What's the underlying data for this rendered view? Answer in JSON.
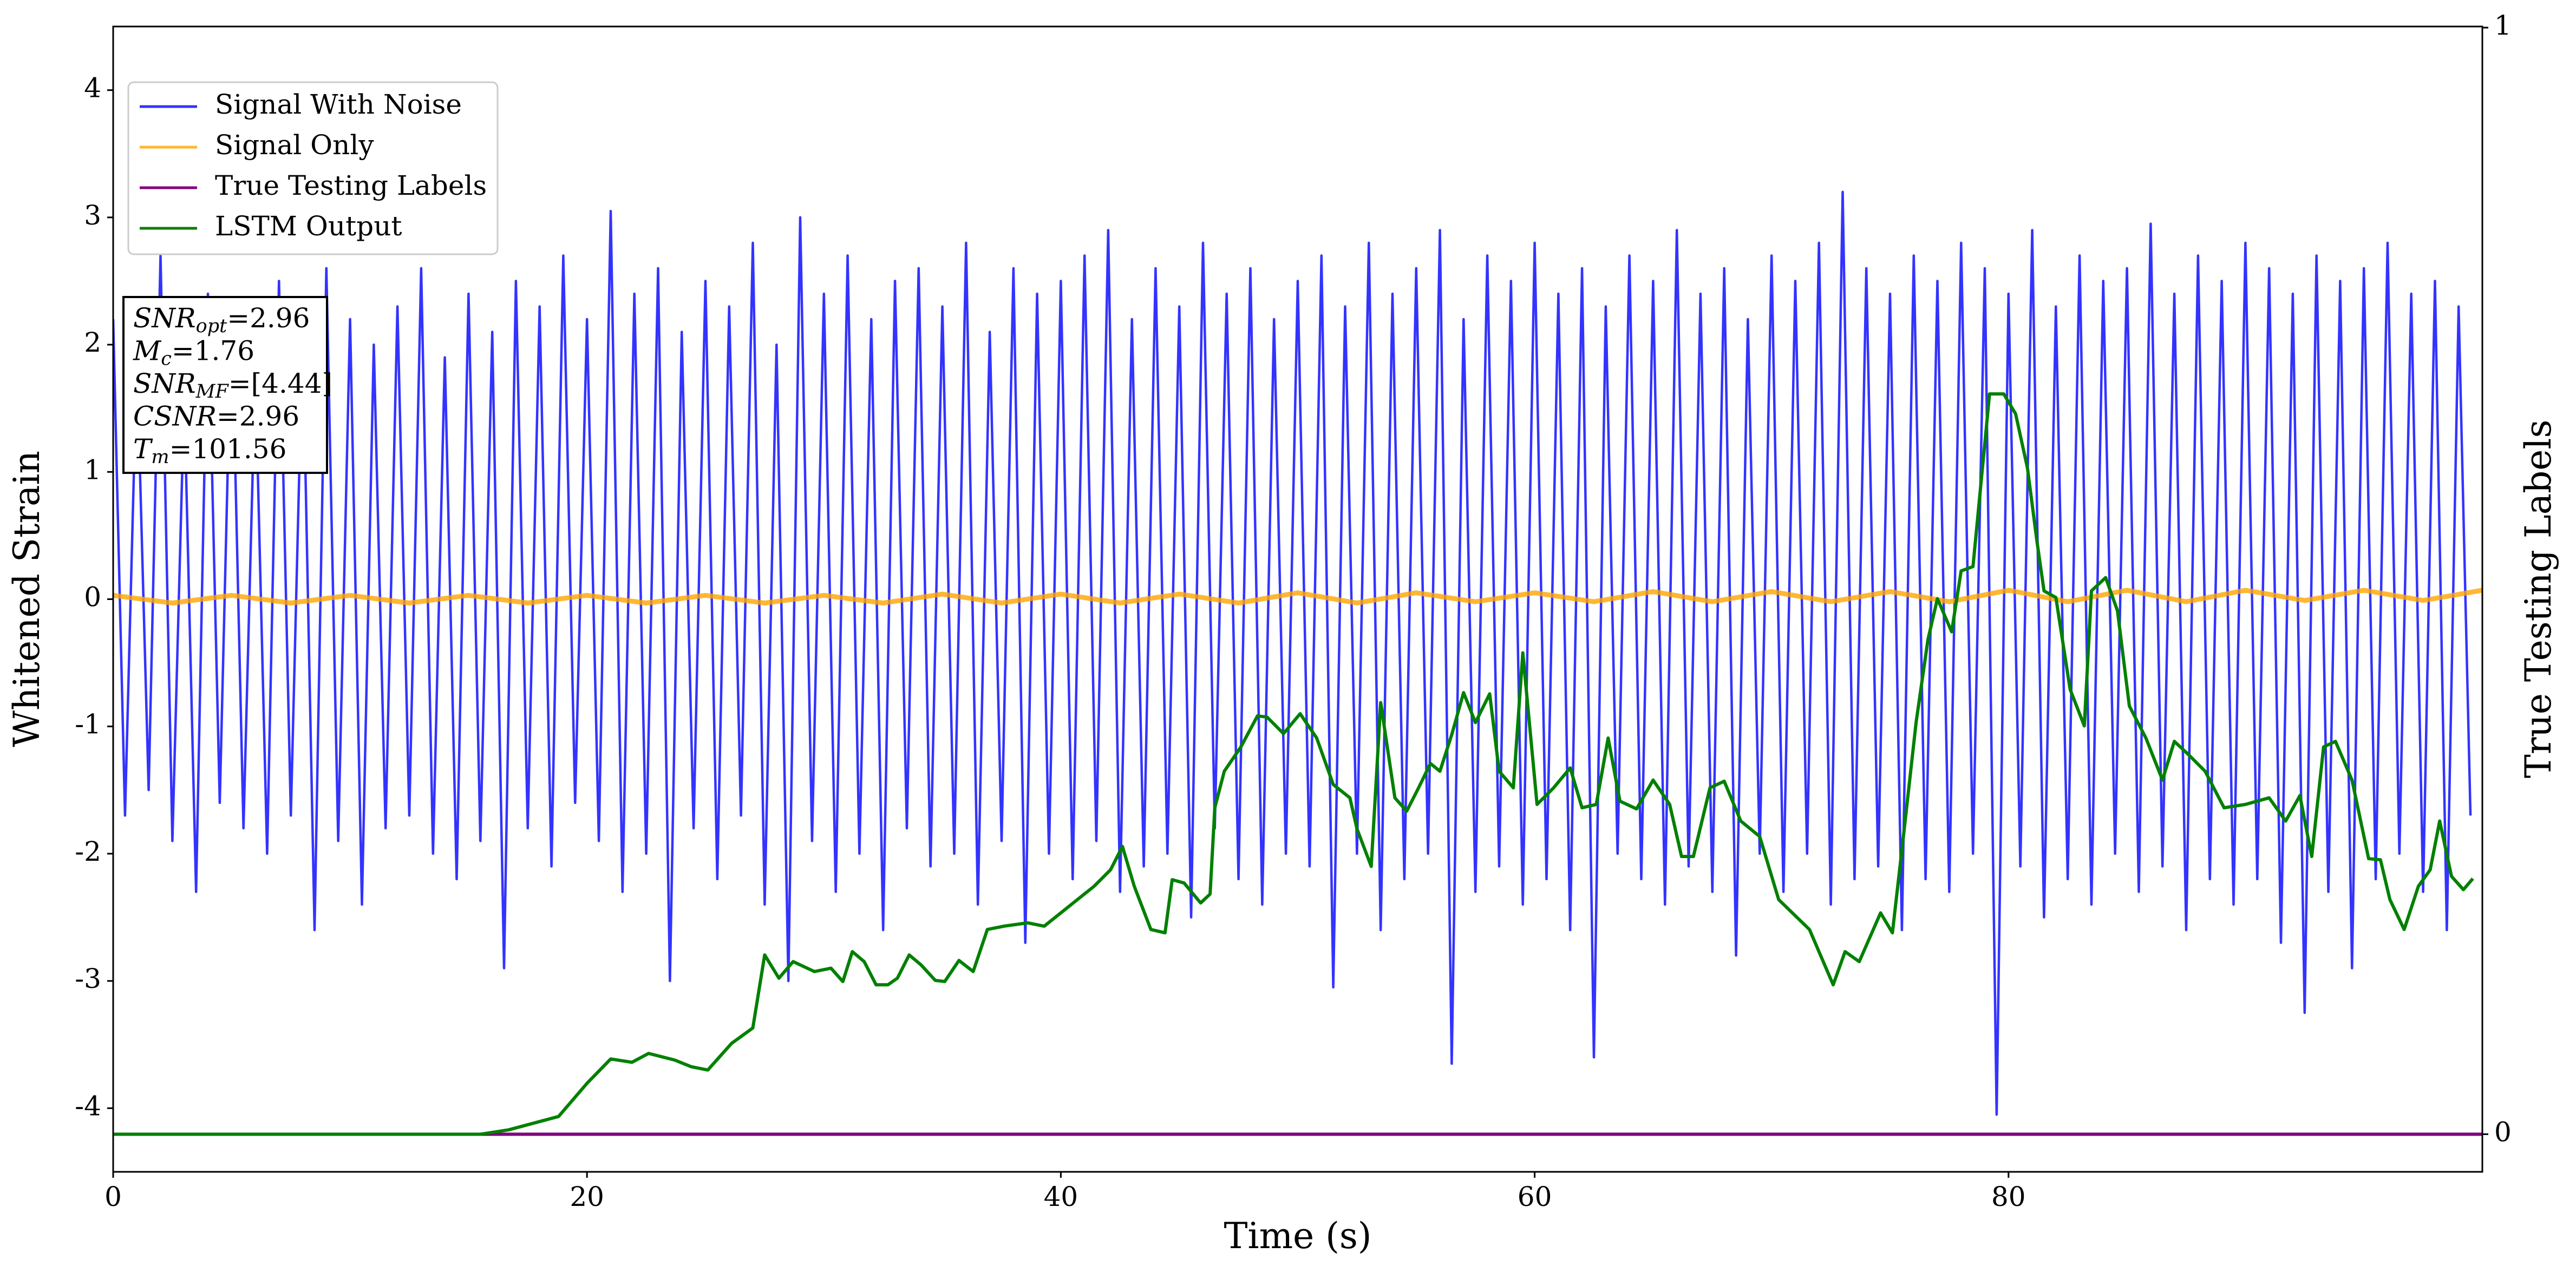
{
  "chart_data": {
    "type": "line",
    "xlabel": "Time (s)",
    "ylabel": "Whitened Strain",
    "y2label": "True Testing Labels",
    "xlim": [
      0,
      100
    ],
    "ylim": [
      -4.5,
      4.5
    ],
    "y2lim": [
      -0.034,
      1.001
    ],
    "xticks": [
      0,
      20,
      40,
      60,
      80
    ],
    "yticks": [
      -4,
      -3,
      -2,
      -1,
      0,
      1,
      2,
      3,
      4
    ],
    "y2ticks": [
      0,
      1
    ],
    "legend": "upper left",
    "annotation": [
      {
        "symbol": "SNR",
        "subscript": "opt",
        "text": "=2.96"
      },
      {
        "symbol": "M",
        "subscript": "c",
        "text": "=1.76"
      },
      {
        "symbol": "SNR",
        "subscript": "MF",
        "text": "=[4.44]"
      },
      {
        "symbol": "CSNR",
        "text": "=2.96"
      },
      {
        "symbol": "T",
        "subscript": "m",
        "text": "=101.56"
      }
    ],
    "series": [
      {
        "name": "Signal With Noise",
        "color": "#0000ff",
        "opacity": 0.8,
        "axis": "y",
        "x": [
          0,
          0.5,
          1,
          1.5,
          2,
          2.5,
          3,
          3.5,
          4,
          4.5,
          5,
          5.5,
          6,
          6.5,
          7,
          7.5,
          8,
          8.5,
          9,
          9.5,
          10,
          10.5,
          11,
          11.5,
          12,
          12.5,
          13,
          13.5,
          14,
          14.5,
          15,
          15.5,
          16,
          16.5,
          17,
          17.5,
          18,
          18.5,
          19,
          19.5,
          20,
          20.5,
          21,
          21.5,
          22,
          22.5,
          23,
          23.5,
          24,
          24.5,
          25,
          25.5,
          26,
          26.5,
          27,
          27.5,
          28,
          28.5,
          29,
          29.5,
          30,
          30.5,
          31,
          31.5,
          32,
          32.5,
          33,
          33.5,
          34,
          34.5,
          35,
          35.5,
          36,
          36.5,
          37,
          37.5,
          38,
          38.5,
          39,
          39.5,
          40,
          40.5,
          41,
          41.5,
          42,
          42.5,
          43,
          43.5,
          44,
          44.5,
          45,
          45.5,
          46,
          46.5,
          47,
          47.5,
          48,
          48.5,
          49,
          49.5,
          50,
          50.5,
          51,
          51.5,
          52,
          52.5,
          53,
          53.5,
          54,
          54.5,
          55,
          55.5,
          56,
          56.5,
          57,
          57.5,
          58,
          58.5,
          59,
          59.5,
          60,
          60.5,
          61,
          61.5,
          62,
          62.5,
          63,
          63.5,
          64,
          64.5,
          65,
          65.5,
          66,
          66.5,
          67,
          67.5,
          68,
          68.5,
          69,
          69.5,
          70,
          70.5,
          71,
          71.5,
          72,
          72.5,
          73,
          73.5,
          74,
          74.5,
          75,
          75.5,
          76,
          76.5,
          77,
          77.5,
          78,
          78.5,
          79,
          79.5,
          80,
          80.5,
          81,
          81.5,
          82,
          82.5,
          83,
          83.5,
          84,
          84.5,
          85,
          85.5,
          86,
          86.5,
          87,
          87.5,
          88,
          88.5,
          89,
          89.5,
          90,
          90.5,
          91,
          91.5,
          92,
          92.5,
          93,
          93.5,
          94,
          94.5,
          95,
          95.5,
          96,
          96.5,
          97,
          97.5,
          98,
          98.5,
          99,
          99.5
        ],
        "values": [
          2.2,
          -1.7,
          1.9,
          -1.5,
          2.7,
          -1.9,
          1.6,
          -2.3,
          2.4,
          -1.6,
          2.3,
          -1.8,
          1.8,
          -2.0,
          2.5,
          -1.7,
          2.1,
          -2.6,
          2.6,
          -1.9,
          2.2,
          -2.4,
          2.0,
          -1.8,
          2.3,
          -1.7,
          2.6,
          -2.0,
          1.9,
          -2.2,
          2.4,
          -1.9,
          2.1,
          -2.9,
          2.5,
          -1.8,
          2.3,
          -2.1,
          2.7,
          -1.6,
          2.2,
          -1.9,
          3.05,
          -2.3,
          2.4,
          -2.0,
          2.6,
          -3.0,
          2.1,
          -1.8,
          2.5,
          -2.2,
          2.3,
          -1.7,
          2.8,
          -2.4,
          2.0,
          -3.0,
          3.0,
          -1.9,
          2.4,
          -2.3,
          2.7,
          -2.0,
          2.2,
          -2.6,
          2.5,
          -1.8,
          2.6,
          -2.1,
          2.3,
          -2.0,
          2.8,
          -2.4,
          2.1,
          -1.9,
          2.6,
          -2.7,
          2.4,
          -2.0,
          2.5,
          -2.2,
          2.7,
          -1.9,
          2.9,
          -2.3,
          2.2,
          -2.1,
          2.6,
          -2.0,
          2.3,
          -2.5,
          2.8,
          -1.8,
          2.4,
          -2.2,
          2.6,
          -2.4,
          2.2,
          -2.0,
          2.5,
          -2.1,
          2.7,
          -3.05,
          2.3,
          -2.0,
          2.8,
          -2.6,
          2.4,
          -2.2,
          2.6,
          -2.0,
          2.9,
          -3.65,
          2.2,
          -2.3,
          2.7,
          -2.1,
          2.5,
          -2.4,
          2.8,
          -2.2,
          2.4,
          -2.6,
          2.6,
          -3.6,
          2.3,
          -2.0,
          2.7,
          -2.2,
          2.5,
          -2.4,
          2.9,
          -2.1,
          2.4,
          -2.3,
          2.6,
          -2.8,
          2.2,
          -2.0,
          2.7,
          -2.3,
          2.5,
          -2.0,
          2.8,
          -2.4,
          3.2,
          -2.2,
          2.6,
          -2.1,
          2.4,
          -2.6,
          2.7,
          -2.2,
          2.5,
          -2.3,
          2.8,
          -2.0,
          2.6,
          -4.05,
          2.4,
          -2.1,
          2.9,
          -2.5,
          2.3,
          -2.2,
          2.7,
          -2.4,
          2.5,
          -2.0,
          2.6,
          -2.3,
          2.95,
          -2.1,
          2.4,
          -2.6,
          2.7,
          -2.2,
          2.5,
          -2.4,
          2.8,
          -2.2,
          2.6,
          -2.7,
          2.4,
          -3.25,
          2.7,
          -2.3,
          2.5,
          -2.9,
          2.6,
          -2.2,
          2.8,
          -2.0,
          2.4,
          -2.3,
          2.5,
          -2.6,
          2.3,
          -1.7
        ]
      },
      {
        "name": "Signal Only",
        "color": "#ffa500",
        "opacity": 0.8,
        "axis": "y",
        "x": [
          0,
          2.5,
          5,
          7.5,
          10,
          12.5,
          15,
          17.5,
          20,
          22.5,
          25,
          27.5,
          30,
          32.5,
          35,
          37.5,
          40,
          42.5,
          45,
          47.5,
          50,
          52.5,
          55,
          57.5,
          60,
          62.5,
          65,
          67.5,
          70,
          72.5,
          75,
          77.5,
          80,
          82.5,
          85,
          87.5,
          90,
          92.5,
          95,
          97.5,
          100
        ],
        "values": [
          0.03,
          -0.03,
          0.03,
          -0.03,
          0.03,
          -0.03,
          0.03,
          -0.03,
          0.03,
          -0.03,
          0.03,
          -0.03,
          0.03,
          -0.03,
          0.04,
          -0.03,
          0.04,
          -0.03,
          0.04,
          -0.03,
          0.05,
          -0.03,
          0.05,
          -0.02,
          0.05,
          -0.02,
          0.06,
          -0.02,
          0.06,
          -0.02,
          0.06,
          -0.02,
          0.07,
          -0.02,
          0.07,
          -0.02,
          0.07,
          -0.01,
          0.07,
          -0.01,
          0.07
        ]
      },
      {
        "name": "True Testing Labels",
        "color": "#800080",
        "axis": "y2",
        "x": [
          0,
          100
        ],
        "values": [
          0,
          0
        ]
      },
      {
        "name": "LSTM Output",
        "color": "#008000",
        "axis": "y2",
        "x": [
          0,
          15.5,
          16.7,
          18.8,
          20,
          21,
          21.9,
          22.6,
          23.7,
          24.4,
          25.1,
          26.1,
          27,
          27.5,
          28.1,
          28.7,
          29.6,
          30.3,
          30.8,
          31.2,
          31.7,
          32.2,
          32.7,
          33.1,
          33.6,
          34.1,
          34.7,
          35.1,
          35.7,
          36.3,
          36.9,
          37.6,
          38.6,
          39.3,
          40,
          40.7,
          41.4,
          42.1,
          42.6,
          43.1,
          43.8,
          44.4,
          44.7,
          45.2,
          45.9,
          46.3,
          46.5,
          46.9,
          47.6,
          48.3,
          48.7,
          49.4,
          50.1,
          50.8,
          51.5,
          52.2,
          52.5,
          53.1,
          53.5,
          54.1,
          54.6,
          55.1,
          55.6,
          56,
          56.5,
          57,
          57.5,
          58.1,
          58.5,
          59.1,
          59.5,
          60.1,
          60.8,
          61.5,
          62,
          62.6,
          63.1,
          63.6,
          64.3,
          65,
          65.7,
          66.2,
          66.7,
          67.4,
          68,
          68.7,
          69.5,
          70.3,
          71.6,
          72.6,
          73.1,
          73.7,
          74.6,
          75.1,
          75.6,
          76.1,
          76.6,
          77,
          77.6,
          78,
          78.5,
          79.2,
          79.8,
          80.3,
          80.8,
          81.2,
          81.5,
          82,
          82.6,
          83.2,
          83.5,
          84.1,
          84.6,
          85.1,
          85.8,
          86.5,
          87,
          87.6,
          88.3,
          89.1,
          90,
          91,
          91.7,
          92.3,
          92.8,
          93.3,
          93.8,
          94.5,
          95.2,
          95.7,
          96.1,
          96.7,
          97.3,
          97.8,
          98.2,
          98.7,
          99.2,
          99.6
        ],
        "values": [
          0,
          0,
          0.004,
          0.016,
          0.046,
          0.068,
          0.065,
          0.073,
          0.067,
          0.061,
          0.058,
          0.082,
          0.096,
          0.162,
          0.141,
          0.156,
          0.147,
          0.15,
          0.138,
          0.165,
          0.156,
          0.135,
          0.135,
          0.141,
          0.162,
          0.153,
          0.139,
          0.138,
          0.157,
          0.147,
          0.185,
          0.188,
          0.191,
          0.188,
          0.2,
          0.212,
          0.224,
          0.239,
          0.26,
          0.224,
          0.185,
          0.182,
          0.23,
          0.227,
          0.209,
          0.217,
          0.295,
          0.328,
          0.35,
          0.378,
          0.377,
          0.362,
          0.38,
          0.358,
          0.316,
          0.304,
          0.276,
          0.242,
          0.39,
          0.304,
          0.292,
          0.313,
          0.335,
          0.328,
          0.361,
          0.399,
          0.372,
          0.398,
          0.328,
          0.313,
          0.435,
          0.298,
          0.313,
          0.331,
          0.295,
          0.298,
          0.358,
          0.301,
          0.294,
          0.32,
          0.298,
          0.251,
          0.251,
          0.313,
          0.319,
          0.283,
          0.269,
          0.212,
          0.185,
          0.135,
          0.165,
          0.156,
          0.2,
          0.182,
          0.276,
          0.372,
          0.447,
          0.484,
          0.454,
          0.509,
          0.513,
          0.669,
          0.669,
          0.651,
          0.602,
          0.536,
          0.491,
          0.485,
          0.402,
          0.369,
          0.491,
          0.503,
          0.473,
          0.387,
          0.358,
          0.32,
          0.355,
          0.343,
          0.328,
          0.295,
          0.298,
          0.304,
          0.283,
          0.306,
          0.251,
          0.35,
          0.355,
          0.32,
          0.249,
          0.248,
          0.212,
          0.185,
          0.224,
          0.239,
          0.283,
          0.233,
          0.221,
          0.231
        ]
      }
    ]
  }
}
